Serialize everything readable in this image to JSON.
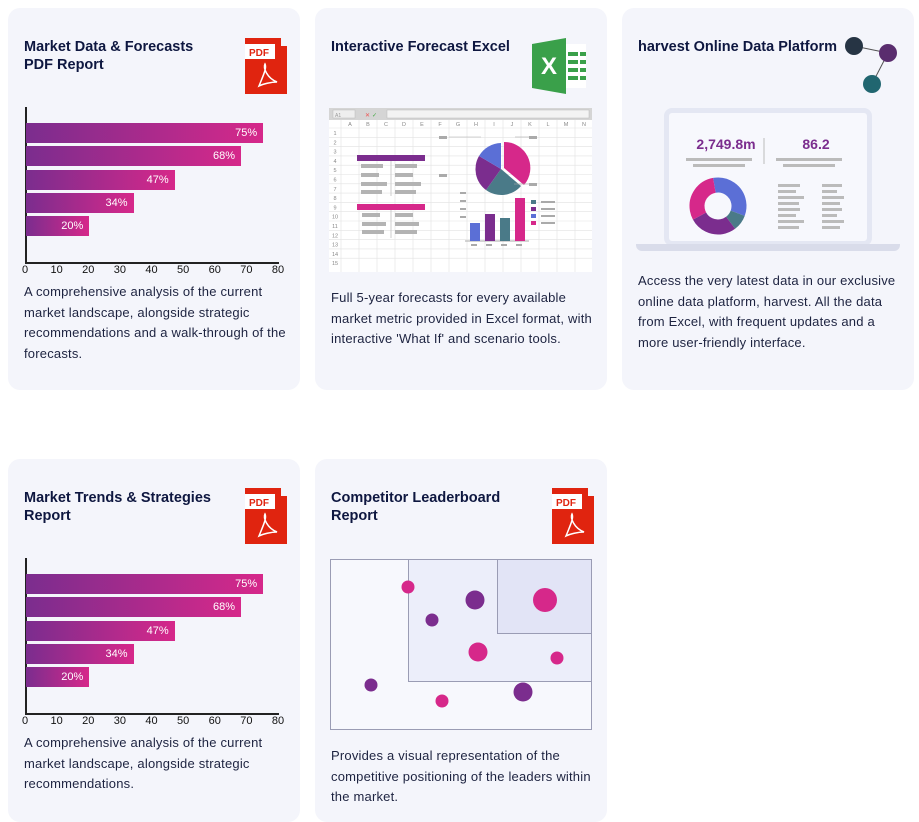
{
  "cards": [
    {
      "title": "Market Data & Forecasts PDF Report",
      "icon": "pdf-icon",
      "icon_label": "PDF",
      "description": "A comprehensive analysis of the current market landscape, alongside strategic recommendations and a walk-through of the forecasts."
    },
    {
      "title": "Interactive Forecast Excel",
      "icon": "excel-icon",
      "description": "Full 5-year forecasts for every available market metric provided in Excel format, with interactive 'What If' and scenario tools."
    },
    {
      "title": "harvest Online Data Platform",
      "icon": "network-icon",
      "description": "Access the very latest data in our exclusive online data platform, harvest. All the data from Excel, with frequent updates and a more user-friendly interface.",
      "stat1": "2,749.8m",
      "stat2": "86.2"
    },
    {
      "title": "Market Trends & Strategies Report",
      "icon": "pdf-icon",
      "icon_label": "PDF",
      "description": "A comprehensive analysis of the current market landscape, alongside strategic recommendations."
    },
    {
      "title": "Competitor Leaderboard Report",
      "icon": "pdf-icon",
      "icon_label": "PDF",
      "description": "Provides a visual representation of the competitive positioning of the leaders within the market."
    }
  ],
  "chart_data": {
    "type": "bar",
    "orientation": "horizontal",
    "values": [
      75,
      68,
      47,
      34,
      20
    ],
    "labels": [
      "75%",
      "68%",
      "47%",
      "34%",
      "20%"
    ],
    "xticks": [
      "0",
      "10",
      "20",
      "30",
      "40",
      "50",
      "60",
      "70",
      "80"
    ],
    "xlim": [
      0,
      80
    ]
  },
  "excel": {
    "columns": [
      "A",
      "B",
      "C",
      "D",
      "E",
      "F",
      "G",
      "H",
      "I",
      "J",
      "K",
      "L",
      "M",
      "N"
    ],
    "rows": [
      "1",
      "2",
      "3",
      "4",
      "5",
      "6",
      "7",
      "8",
      "9",
      "10",
      "11",
      "12",
      "13",
      "14",
      "15"
    ],
    "cell_ref": "A1"
  },
  "colors": {
    "purple": "#7b2d8e",
    "pink": "#d6288a",
    "blue": "#5b6fd6",
    "teal": "#4a7a88",
    "navy": "#0e1740",
    "pdf_red": "#e0240f",
    "excel_green": "#3aa04a"
  }
}
